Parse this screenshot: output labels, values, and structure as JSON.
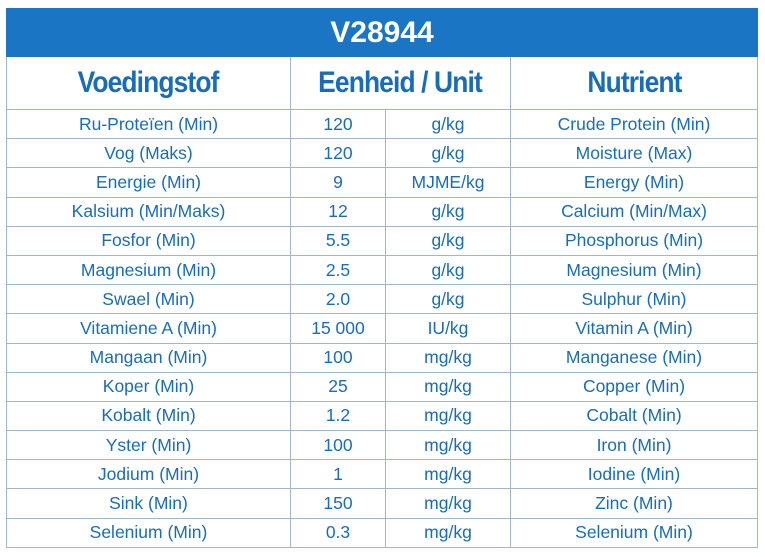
{
  "title": "V28944",
  "header": [
    "Voedingstof",
    "Eenheid / Unit",
    "Nutrient"
  ],
  "rows": [
    [
      "Ru-Proteïen (Min)",
      "120",
      "g/kg",
      "Crude Protein (Min)"
    ],
    [
      "Vog (Maks)",
      "120",
      "g/kg",
      "Moisture (Max)"
    ],
    [
      "Energie (Min)",
      "9",
      "MJME/kg",
      "Energy (Min)"
    ],
    [
      "Kalsium (Min/Maks)",
      "12",
      "g/kg",
      "Calcium (Min/Max)"
    ],
    [
      "Fosfor (Min)",
      "5.5",
      "g/kg",
      "Phosphorus (Min)"
    ],
    [
      "Magnesium (Min)",
      "2.5",
      "g/kg",
      "Magnesium (Min)"
    ],
    [
      "Swael (Min)",
      "2.0",
      "g/kg",
      "Sulphur (Min)"
    ],
    [
      "Vitamiene A (Min)",
      "15 000",
      "IU/kg",
      "Vitamin A (Min)"
    ],
    [
      "Mangaan (Min)",
      "100",
      "mg/kg",
      "Manganese (Min)"
    ],
    [
      "Koper (Min)",
      "25",
      "mg/kg",
      "Copper (Min)"
    ],
    [
      "Kobalt (Min)",
      "1.2",
      "mg/kg",
      "Cobalt (Min)"
    ],
    [
      "Yster (Min)",
      "100",
      "mg/kg",
      "Iron (Min)"
    ],
    [
      "Jodium (Min)",
      "1",
      "mg/kg",
      "Iodine (Min)"
    ],
    [
      "Sink (Min)",
      "150",
      "mg/kg",
      "Zinc (Min)"
    ],
    [
      "Selenium (Min)",
      "0.3",
      "mg/kg",
      "Selenium (Min)"
    ]
  ]
}
